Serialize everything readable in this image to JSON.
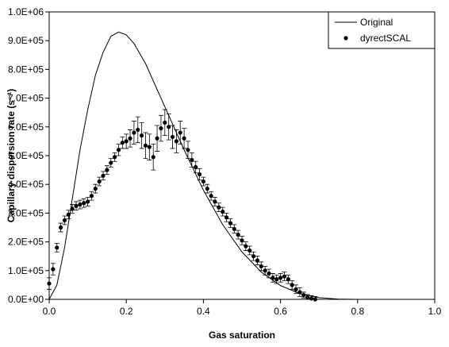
{
  "chart_data": {
    "type": "scatter",
    "xlabel": "Gas saturation",
    "ylabel": "Capillary dispersion rate (s⁻¹)",
    "xlim": [
      0,
      1
    ],
    "ylim": [
      0,
      1000000
    ],
    "xticks": [
      {
        "value": 0,
        "label": "0.0"
      },
      0.2,
      0.4,
      0.6,
      0.8,
      {
        "value": 1,
        "label": "1.0"
      }
    ],
    "yticks": [
      {
        "value": 0,
        "label": "0.0E+00"
      },
      {
        "value": 100000,
        "label": "1.0E+05"
      },
      {
        "value": 200000,
        "label": "2.0E+05"
      },
      {
        "value": 300000,
        "label": "3.0E+05"
      },
      {
        "value": 400000,
        "label": "4.0E+05"
      },
      {
        "value": 500000,
        "label": "5.0E+05"
      },
      {
        "value": 600000,
        "label": "6.0E+05"
      },
      {
        "value": 700000,
        "label": "7.0E+05"
      },
      {
        "value": 800000,
        "label": "8.0E+05"
      },
      {
        "value": 900000,
        "label": "9.0E+05"
      },
      {
        "value": 1000000,
        "label": "1.0E+06"
      }
    ],
    "legend": "upper right",
    "series": [
      {
        "name": "Original",
        "type": "line",
        "color": "#000000",
        "x": [
          0,
          0.02,
          0.04,
          0.06,
          0.08,
          0.1,
          0.12,
          0.14,
          0.16,
          0.18,
          0.2,
          0.22,
          0.25,
          0.28,
          0.3,
          0.35,
          0.4,
          0.45,
          0.5,
          0.55,
          0.6,
          0.65,
          0.7,
          0.75,
          0.8
        ],
        "values": [
          0,
          50000,
          180000,
          350000,
          520000,
          660000,
          780000,
          860000,
          915000,
          930000,
          920000,
          890000,
          820000,
          730000,
          670000,
          520000,
          380000,
          260000,
          165000,
          95000,
          48000,
          20000,
          6000,
          1000,
          0
        ]
      },
      {
        "name": "dyrectSCAL",
        "type": "scatter",
        "color": "#000000",
        "x": [
          0.0,
          0.01,
          0.02,
          0.03,
          0.04,
          0.05,
          0.06,
          0.07,
          0.08,
          0.09,
          0.1,
          0.11,
          0.12,
          0.13,
          0.14,
          0.15,
          0.16,
          0.17,
          0.18,
          0.19,
          0.2,
          0.21,
          0.22,
          0.23,
          0.24,
          0.25,
          0.26,
          0.27,
          0.28,
          0.29,
          0.3,
          0.31,
          0.32,
          0.33,
          0.34,
          0.35,
          0.36,
          0.37,
          0.38,
          0.39,
          0.4,
          0.41,
          0.42,
          0.43,
          0.44,
          0.45,
          0.46,
          0.47,
          0.48,
          0.49,
          0.5,
          0.51,
          0.52,
          0.53,
          0.54,
          0.55,
          0.56,
          0.57,
          0.58,
          0.59,
          0.6,
          0.61,
          0.62,
          0.63,
          0.64,
          0.65,
          0.66,
          0.67,
          0.68,
          0.69
        ],
        "values": [
          55000,
          105000,
          180000,
          250000,
          275000,
          295000,
          315000,
          325000,
          330000,
          335000,
          340000,
          360000,
          385000,
          410000,
          430000,
          450000,
          475000,
          495000,
          520000,
          545000,
          550000,
          560000,
          580000,
          590000,
          570000,
          535000,
          530000,
          495000,
          560000,
          595000,
          615000,
          600000,
          565000,
          550000,
          580000,
          560000,
          520000,
          485000,
          460000,
          435000,
          410000,
          385000,
          360000,
          340000,
          320000,
          305000,
          285000,
          265000,
          245000,
          225000,
          205000,
          185000,
          170000,
          150000,
          135000,
          115000,
          100000,
          90000,
          75000,
          70000,
          75000,
          80000,
          70000,
          50000,
          35000,
          25000,
          15000,
          7000,
          3000,
          0
        ],
        "errors": [
          20000,
          20000,
          15000,
          15000,
          15000,
          15000,
          15000,
          15000,
          15000,
          15000,
          15000,
          15000,
          15000,
          15000,
          15000,
          15000,
          15000,
          15000,
          20000,
          20000,
          25000,
          30000,
          40000,
          45000,
          45000,
          45000,
          45000,
          45000,
          45000,
          45000,
          45000,
          45000,
          40000,
          40000,
          40000,
          35000,
          30000,
          25000,
          20000,
          20000,
          15000,
          15000,
          15000,
          15000,
          15000,
          15000,
          15000,
          15000,
          15000,
          15000,
          15000,
          15000,
          15000,
          15000,
          15000,
          15000,
          15000,
          15000,
          15000,
          15000,
          15000,
          15000,
          15000,
          15000,
          15000,
          15000,
          10000,
          10000,
          10000,
          10000
        ]
      }
    ]
  }
}
